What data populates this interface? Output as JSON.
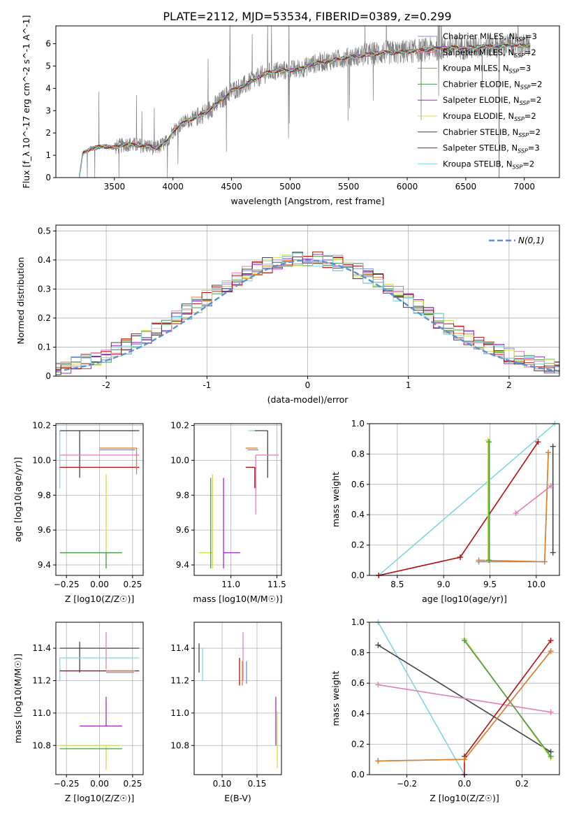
{
  "figure": {
    "title": "PLATE=2112, MJD=53534, FIBERID=0389, z=0.299"
  },
  "colors": {
    "chabrier_miles": "#7b8fd6",
    "salpeter_miles": "#e07fb5",
    "kroupa_miles": "#e0812a",
    "chabrier_elodie": "#4a9a4a",
    "salpeter_elodie": "#9a2fc2",
    "kroupa_elodie": "#c8e04a",
    "chabrier_stelib": "#444444",
    "salpeter_stelib": "#b01010",
    "kroupa_stelib": "#7fd6e0",
    "observed": "#808080",
    "normal": "#5b8fd8",
    "grid": "#b0b0b0"
  },
  "chart_data": [
    {
      "id": "spectrum",
      "type": "line",
      "title": "PLATE=2112, MJD=53534, FIBERID=0389, z=0.299",
      "xlabel": "wavelength [Angstrom, rest frame]",
      "ylabel": "Flux [f_λ 10^-17 erg cm^-2 s^-1 A^-1]",
      "xlim": [
        3000,
        7300
      ],
      "ylim": [
        0,
        6.8
      ],
      "xticks": [
        3500,
        4000,
        4500,
        5000,
        5500,
        6000,
        6500,
        7000
      ],
      "yticks": [
        0,
        1,
        2,
        3,
        4,
        5,
        6
      ],
      "grid": false,
      "legend_position": "top-right",
      "continuum": {
        "x": [
          3200,
          3230,
          3300,
          3400,
          3500,
          3600,
          3700,
          3800,
          3850,
          3900,
          3950,
          4000,
          4100,
          4200,
          4300,
          4400,
          4500,
          4600,
          4700,
          4800,
          4900,
          5000,
          5100,
          5200,
          5300,
          5400,
          5500,
          5600,
          5700,
          5800,
          5900,
          6000,
          6100,
          6200,
          6300,
          6400,
          6500,
          6600,
          6700,
          6800,
          6900,
          7000,
          7050
        ],
        "y": [
          0.0,
          1.1,
          1.3,
          1.4,
          1.35,
          1.5,
          1.45,
          1.4,
          1.3,
          1.45,
          1.6,
          2.1,
          2.5,
          2.7,
          3.0,
          3.4,
          3.9,
          4.1,
          4.4,
          4.7,
          4.8,
          4.8,
          4.9,
          5.1,
          5.2,
          5.3,
          5.4,
          5.45,
          5.55,
          5.6,
          5.6,
          5.65,
          5.7,
          5.75,
          5.8,
          5.85,
          5.8,
          5.85,
          5.9,
          5.9,
          5.95,
          5.9,
          5.95
        ]
      },
      "series_names": [
        "Chabrier MILES, N_SSP=3",
        "Salpeter MILES, N_SSP=2",
        "Kroupa MILES, N_SSP=3",
        "Chabrier ELODIE, N_SSP=2",
        "Salpeter ELODIE, N_SSP=2",
        "Kroupa ELODIE, N_SSP=2",
        "Chabrier STELIB, N_SSP=2",
        "Salpeter STELIB, N_SSP=3",
        "Kroupa STELIB, N_SSP=2"
      ]
    },
    {
      "id": "residuals",
      "type": "line",
      "xlabel": "(data-model)/error",
      "ylabel": "Normed distribution",
      "xlim": [
        -2.5,
        2.5
      ],
      "ylim": [
        0,
        0.52
      ],
      "xticks": [
        -2,
        -1,
        0,
        1,
        2
      ],
      "yticks": [
        0.0,
        0.1,
        0.2,
        0.3,
        0.4,
        0.5
      ],
      "grid": true,
      "legend_position": "top-right",
      "normal_label": "N(0,1)",
      "bin_width": 0.1
    },
    {
      "id": "age_vs_Z",
      "type": "scatter",
      "xlabel": "Z [log10(Z/Z☉)]",
      "ylabel": "age [log10(age/yr)]",
      "xlim": [
        -0.33,
        0.33
      ],
      "ylim": [
        9.34,
        10.21
      ],
      "xticks": [
        -0.25,
        0.0,
        0.25
      ],
      "xticklabels": [
        "−0.25",
        "0.00",
        "0.25"
      ],
      "yticks": [
        9.4,
        9.6,
        9.8,
        10.0,
        10.2
      ],
      "yticklabels": [
        "9.4",
        "9.6",
        "9.8",
        "10.0",
        "10.2"
      ],
      "grid": true,
      "points": [
        {
          "model": "kroupa_stelib",
          "x": -0.3,
          "y": 10.17,
          "xerr": [
            0.0,
            0.6
          ],
          "yerr": [
            0.33,
            0.0
          ]
        },
        {
          "model": "chabrier_stelib",
          "x": -0.15,
          "y": 10.17,
          "xerr": [
            0.15,
            0.45
          ],
          "yerr": [
            0.27,
            0.0
          ]
        },
        {
          "model": "salpeter_miles",
          "x": -0.3,
          "y": 10.03,
          "xerr": [
            0.0,
            0.6
          ],
          "yerr": [
            0.0,
            0.0
          ]
        },
        {
          "model": "salpeter_stelib",
          "x": 0.0,
          "y": 9.96,
          "xerr": [
            0.3,
            0.3
          ],
          "yerr": [
            0.0,
            0.0
          ]
        },
        {
          "model": "kroupa_miles",
          "x": 0.28,
          "y": 10.07,
          "xerr": [
            0.28,
            0.0
          ],
          "yerr": [
            0.15,
            0.0
          ]
        },
        {
          "model": "chabrier_miles",
          "x": 0.27,
          "y": 10.06,
          "xerr": [
            0.27,
            0.0
          ],
          "yerr": [
            0.0,
            0.0
          ]
        },
        {
          "model": "kroupa_elodie",
          "x": 0.05,
          "y": 9.47,
          "xerr": [
            0.35,
            0.1
          ],
          "yerr": [
            0.09,
            0.45
          ]
        },
        {
          "model": "chabrier_elodie",
          "x": 0.05,
          "y": 9.47,
          "xerr": [
            0.35,
            0.12
          ],
          "yerr": [
            0.09,
            0.0
          ]
        }
      ]
    },
    {
      "id": "age_vs_mass",
      "type": "scatter",
      "xlabel": "mass [log10(M/M☉)]",
      "ylabel": "",
      "xlim": [
        10.6,
        11.55
      ],
      "ylim": [
        9.34,
        10.21
      ],
      "xticks": [
        11.0,
        11.5
      ],
      "xticklabels": [
        "11.0",
        "11.5"
      ],
      "yticks": [
        9.4,
        9.6,
        9.8,
        10.0,
        10.2
      ],
      "yticklabels": [
        "9.4",
        "9.6",
        "9.8",
        "10.0",
        "10.2"
      ],
      "grid": true,
      "points": [
        {
          "model": "kroupa_elodie",
          "x": 10.8,
          "y": 9.47,
          "xerr": [
            0.15,
            0.0
          ],
          "yerr": [
            0.09,
            0.45
          ]
        },
        {
          "model": "chabrier_elodie",
          "x": 10.78,
          "y": 9.47,
          "xerr": [
            0.0,
            0.0
          ],
          "yerr": [
            0.09,
            0.43
          ]
        },
        {
          "model": "salpeter_elodie",
          "x": 10.92,
          "y": 9.47,
          "xerr": [
            0.0,
            0.18
          ],
          "yerr": [
            0.09,
            0.43
          ]
        },
        {
          "model": "kroupa_stelib",
          "x": 11.34,
          "y": 10.17,
          "xerr": [
            0.15,
            0.0
          ],
          "yerr": [
            0.0,
            0.0
          ]
        },
        {
          "model": "chabrier_stelib",
          "x": 11.4,
          "y": 10.17,
          "xerr": [
            0.14,
            0.0
          ],
          "yerr": [
            0.27,
            0.0
          ]
        },
        {
          "model": "salpeter_miles",
          "x": 11.27,
          "y": 10.03,
          "xerr": [
            0.0,
            0.25
          ],
          "yerr": [
            0.34,
            0.0
          ]
        },
        {
          "model": "salpeter_stelib",
          "x": 11.26,
          "y": 9.96,
          "xerr": [
            0.1,
            0.0
          ],
          "yerr": [
            0.12,
            0.0
          ]
        },
        {
          "model": "kroupa_miles",
          "x": 11.26,
          "y": 10.07,
          "xerr": [
            0.1,
            0.03
          ],
          "yerr": [
            0.0,
            0.0
          ]
        },
        {
          "model": "chabrier_miles",
          "x": 11.25,
          "y": 10.06,
          "xerr": [
            0.07,
            0.05
          ],
          "yerr": [
            0.0,
            0.0
          ]
        }
      ]
    },
    {
      "id": "weight_vs_age",
      "type": "line",
      "xlabel": "age [log10(age/yr)]",
      "ylabel": "mass weight",
      "xlim": [
        8.2,
        10.25
      ],
      "ylim": [
        0,
        1.0
      ],
      "xticks": [
        8.5,
        9.0,
        9.5,
        10.0
      ],
      "xticklabels": [
        "8.5",
        "9.0",
        "9.5",
        "10.0"
      ],
      "yticks": [
        0.0,
        0.2,
        0.4,
        0.6,
        0.8,
        1.0
      ],
      "yticklabels": [
        "0.0",
        "0.2",
        "0.4",
        "0.6",
        "0.8",
        "1.0"
      ],
      "grid": true,
      "series": [
        {
          "model": "kroupa_stelib",
          "x": [
            8.3,
            10.2
          ],
          "y": [
            0.0,
            1.0
          ]
        },
        {
          "model": "salpeter_stelib",
          "x": [
            8.3,
            9.18,
            10.02
          ],
          "y": [
            0.0,
            0.12,
            0.88
          ]
        },
        {
          "model": "kroupa_elodie",
          "x": [
            9.48,
            9.48
          ],
          "y": [
            0.1,
            0.89
          ]
        },
        {
          "model": "chabrier_elodie",
          "x": [
            9.49,
            9.49
          ],
          "y": [
            0.1,
            0.88
          ]
        },
        {
          "model": "salpeter_miles",
          "x": [
            9.78,
            10.16
          ],
          "y": [
            0.41,
            0.59
          ]
        },
        {
          "model": "chabrier_stelib",
          "x": [
            10.18,
            10.18
          ],
          "y": [
            0.15,
            0.85
          ]
        },
        {
          "model": "chabrier_miles",
          "x": [
            9.38,
            10.09,
            10.13
          ],
          "y": [
            0.09,
            0.09,
            0.81
          ]
        },
        {
          "model": "kroupa_miles",
          "x": [
            9.38,
            10.09,
            10.13
          ],
          "y": [
            0.1,
            0.09,
            0.81
          ]
        }
      ]
    },
    {
      "id": "mass_vs_Z",
      "type": "scatter",
      "xlabel": "Z [log10(Z/Z☉)]",
      "ylabel": "mass [log10(M/M☉)]",
      "xlim": [
        -0.33,
        0.33
      ],
      "ylim": [
        10.62,
        11.56
      ],
      "xticks": [
        -0.25,
        0.0,
        0.25
      ],
      "xticklabels": [
        "−0.25",
        "0.00",
        "0.25"
      ],
      "yticks": [
        10.8,
        11.0,
        11.2,
        11.4
      ],
      "yticklabels": [
        "10.8",
        "11.0",
        "11.2",
        "11.4"
      ],
      "grid": true,
      "points": [
        {
          "model": "chabrier_stelib",
          "x": -0.15,
          "y": 11.4,
          "xerr": [
            0.15,
            0.45
          ],
          "yerr": [
            0.15,
            0.04
          ]
        },
        {
          "model": "kroupa_stelib",
          "x": -0.3,
          "y": 11.34,
          "xerr": [
            0.0,
            0.6
          ],
          "yerr": [
            0.14,
            0.0
          ]
        },
        {
          "model": "salpeter_stelib",
          "x": 0.0,
          "y": 11.26,
          "xerr": [
            0.3,
            0.3
          ],
          "yerr": [
            0.0,
            0.0
          ]
        },
        {
          "model": "salpeter_miles",
          "x": 0.05,
          "y": 11.27,
          "xerr": [
            0.0,
            0.0
          ],
          "yerr": [
            0.0,
            0.23
          ]
        },
        {
          "model": "kroupa_miles",
          "x": 0.27,
          "y": 11.26,
          "xerr": [
            0.22,
            0.0
          ],
          "yerr": [
            0.0,
            0.0
          ]
        },
        {
          "model": "chabrier_miles",
          "x": 0.26,
          "y": 11.25,
          "xerr": [
            0.21,
            0.0
          ],
          "yerr": [
            0.0,
            0.0
          ]
        },
        {
          "model": "salpeter_elodie",
          "x": 0.05,
          "y": 10.92,
          "xerr": [
            0.2,
            0.12
          ],
          "yerr": [
            0.0,
            0.18
          ]
        },
        {
          "model": "kroupa_elodie",
          "x": 0.05,
          "y": 10.8,
          "xerr": [
            0.35,
            0.1
          ],
          "yerr": [
            0.15,
            0.0
          ]
        },
        {
          "model": "chabrier_elodie",
          "x": 0.05,
          "y": 10.78,
          "xerr": [
            0.35,
            0.12
          ],
          "yerr": [
            0.0,
            0.0
          ]
        }
      ]
    },
    {
      "id": "mass_vs_ebv",
      "type": "scatter",
      "xlabel": "E(B-V)",
      "ylabel": "",
      "xlim": [
        0.06,
        0.185
      ],
      "ylim": [
        10.62,
        11.56
      ],
      "xticks": [
        0.1,
        0.15
      ],
      "xticklabels": [
        "0.10",
        "0.15"
      ],
      "yticks": [
        10.8,
        11.0,
        11.2,
        11.4
      ],
      "yticklabels": [
        "10.8",
        "11.0",
        "11.2",
        "11.4"
      ],
      "grid": true,
      "points": [
        {
          "model": "chabrier_stelib",
          "x": 0.067,
          "y": 11.33,
          "xerr": [
            0.0,
            0.0
          ],
          "yerr": [
            0.08,
            0.1
          ]
        },
        {
          "model": "kroupa_stelib",
          "x": 0.072,
          "y": 11.3,
          "xerr": [
            0.0,
            0.0
          ],
          "yerr": [
            0.1,
            0.1
          ]
        },
        {
          "model": "salpeter_stelib",
          "x": 0.125,
          "y": 11.24,
          "xerr": [
            0.0,
            0.0
          ],
          "yerr": [
            0.07,
            0.1
          ]
        },
        {
          "model": "kroupa_miles",
          "x": 0.129,
          "y": 11.24,
          "xerr": [
            0.0,
            0.0
          ],
          "yerr": [
            0.07,
            0.08
          ]
        },
        {
          "model": "salpeter_miles",
          "x": 0.13,
          "y": 11.35,
          "xerr": [
            0.0,
            0.0
          ],
          "yerr": [
            0.15,
            0.15
          ]
        },
        {
          "model": "chabrier_miles",
          "x": 0.135,
          "y": 11.24,
          "xerr": [
            0.0,
            0.0
          ],
          "yerr": [
            0.06,
            0.08
          ]
        },
        {
          "model": "salpeter_elodie",
          "x": 0.177,
          "y": 10.95,
          "xerr": [
            0.0,
            0.0
          ],
          "yerr": [
            0.15,
            0.15
          ]
        },
        {
          "model": "kroupa_elodie",
          "x": 0.179,
          "y": 10.8,
          "xerr": [
            0.0,
            0.0
          ],
          "yerr": [
            0.14,
            0.21
          ]
        }
      ]
    },
    {
      "id": "weight_vs_Z",
      "type": "line",
      "xlabel": "Z [log10(Z/Z☉)]",
      "ylabel": "mass weight",
      "xlim": [
        -0.33,
        0.33
      ],
      "ylim": [
        0,
        1.0
      ],
      "xticks": [
        -0.2,
        0.0,
        0.2
      ],
      "xticklabels": [
        "−0.2",
        "0.0",
        "0.2"
      ],
      "yticks": [
        0.0,
        0.2,
        0.4,
        0.6,
        0.8,
        1.0
      ],
      "yticklabels": [
        "0.0",
        "0.2",
        "0.4",
        "0.6",
        "0.8",
        "1.0"
      ],
      "grid": true,
      "series": [
        {
          "model": "kroupa_stelib",
          "x": [
            -0.3,
            0.0
          ],
          "y": [
            1.0,
            0.0
          ]
        },
        {
          "model": "chabrier_stelib",
          "x": [
            -0.3,
            0.3
          ],
          "y": [
            0.85,
            0.15
          ]
        },
        {
          "model": "salpeter_miles",
          "x": [
            -0.3,
            0.3
          ],
          "y": [
            0.59,
            0.41
          ]
        },
        {
          "model": "kroupa_elodie",
          "x": [
            0.0,
            0.3
          ],
          "y": [
            0.89,
            0.11
          ]
        },
        {
          "model": "chabrier_elodie",
          "x": [
            0.0,
            0.3
          ],
          "y": [
            0.88,
            0.12
          ]
        },
        {
          "model": "salpeter_stelib",
          "x": [
            0.0,
            0.0,
            0.3
          ],
          "y": [
            0.0,
            0.12,
            0.88
          ]
        },
        {
          "model": "chabrier_miles",
          "x": [
            -0.3,
            0.0,
            0.3
          ],
          "y": [
            0.09,
            0.1,
            0.81
          ]
        },
        {
          "model": "kroupa_miles",
          "x": [
            -0.3,
            0.0,
            0.3
          ],
          "y": [
            0.09,
            0.1,
            0.81
          ]
        }
      ]
    }
  ]
}
